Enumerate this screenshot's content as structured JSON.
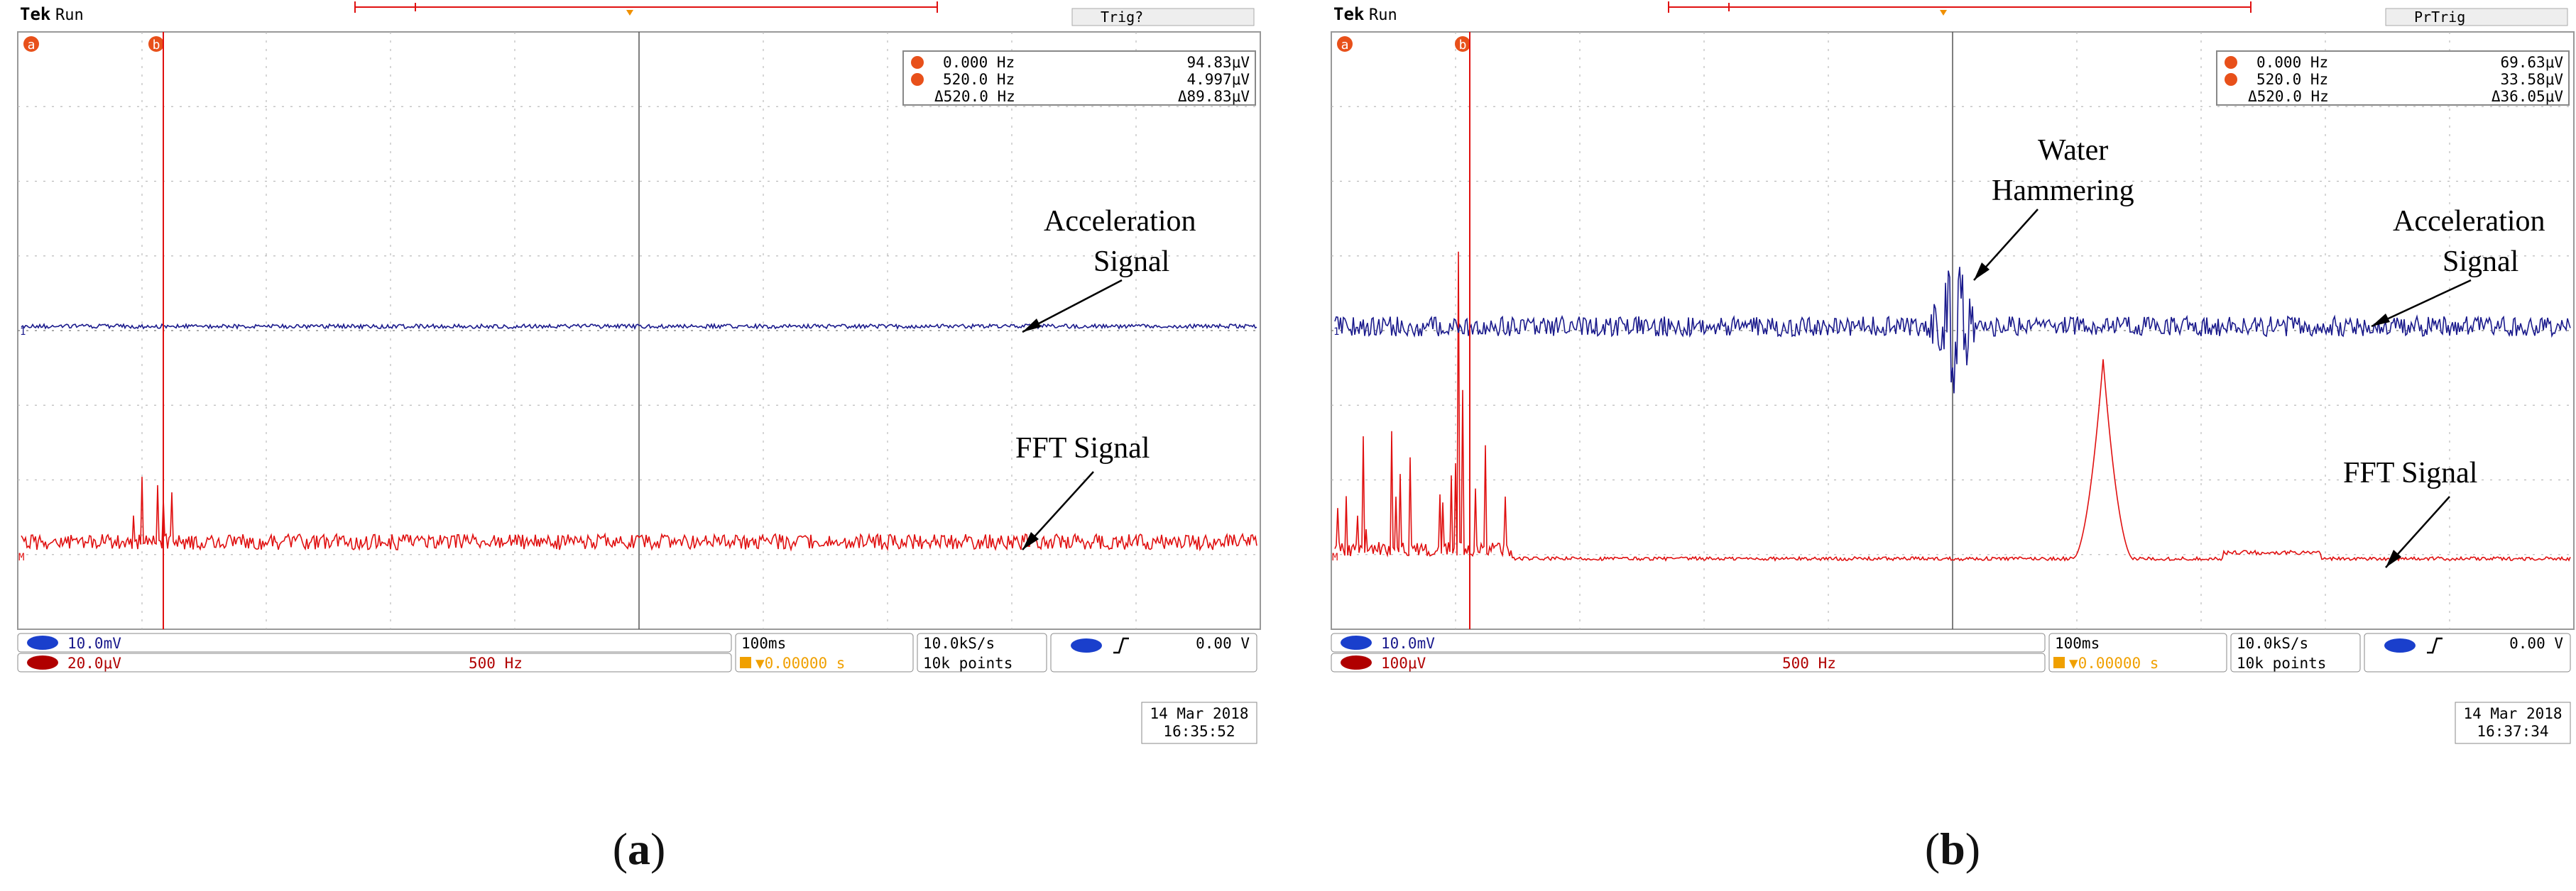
{
  "chart_data": [
    {
      "type": "line",
      "panel_label": "a",
      "header": {
        "brand": "Tek",
        "mode": "Run",
        "trigger_status": "Trig?"
      },
      "cursor_readout": {
        "a": {
          "marker": "a",
          "freq": "0.000 Hz",
          "value": "94.83μV"
        },
        "b": {
          "marker": "b",
          "freq": "520.0 Hz",
          "value": "4.997μV"
        },
        "delta": {
          "freq": "Δ520.0 Hz",
          "value": "Δ89.83μV"
        }
      },
      "series": [
        {
          "name": "Acceleration Signal",
          "color": "#1a1a8c",
          "ground_marker": "1",
          "noise_amplitude": "low",
          "burst": "none"
        },
        {
          "name": "FFT Signal",
          "color": "#e01010",
          "ground_marker": "M",
          "shape": "noisy-floor",
          "peak_region": "near cursor b (~520 Hz)",
          "secondary_peak": "none"
        }
      ],
      "annotations": [
        "Acceleration",
        "Signal",
        "FFT Signal"
      ],
      "status_bar": {
        "ch1_scale": "10.0mV",
        "math_scale": "20.0μV",
        "math_freq_div": "500 Hz",
        "time_div": "100ms",
        "trigger_pos": "▼0.00000 s",
        "sample_rate": "10.0kS/s",
        "record_length": "10k points",
        "trigger_level": "0.00 V",
        "date": "14 Mar 2018",
        "time": "16:35:52"
      }
    },
    {
      "type": "line",
      "panel_label": "b",
      "header": {
        "brand": "Tek",
        "mode": "Run",
        "trigger_status": "PrTrig"
      },
      "cursor_readout": {
        "a": {
          "marker": "a",
          "freq": "0.000 Hz",
          "value": "69.63μV"
        },
        "b": {
          "marker": "b",
          "freq": "520.0 Hz",
          "value": "33.58μV"
        },
        "delta": {
          "freq": "Δ520.0 Hz",
          "value": "Δ36.05μV"
        }
      },
      "series": [
        {
          "name": "Acceleration Signal",
          "color": "#1a1a8c",
          "ground_marker": "1",
          "noise_amplitude": "high",
          "burst": "water hammering at center"
        },
        {
          "name": "FFT Signal",
          "color": "#e01010",
          "ground_marker": "M",
          "shape": "low-floor",
          "peak_region": "near cursor b (~520 Hz)",
          "secondary_peak": "narrow peak right of center"
        }
      ],
      "annotations": [
        "Water",
        "Hammering",
        "Acceleration",
        "Signal",
        "FFT Signal"
      ],
      "status_bar": {
        "ch1_scale": "10.0mV",
        "math_scale": "100μV",
        "math_freq_div": "500 Hz",
        "time_div": "100ms",
        "trigger_pos": "▼0.00000 s",
        "sample_rate": "10.0kS/s",
        "record_length": "10k points",
        "trigger_level": "0.00 V",
        "date": "14 Mar 2018",
        "time": "16:37:34"
      }
    }
  ]
}
